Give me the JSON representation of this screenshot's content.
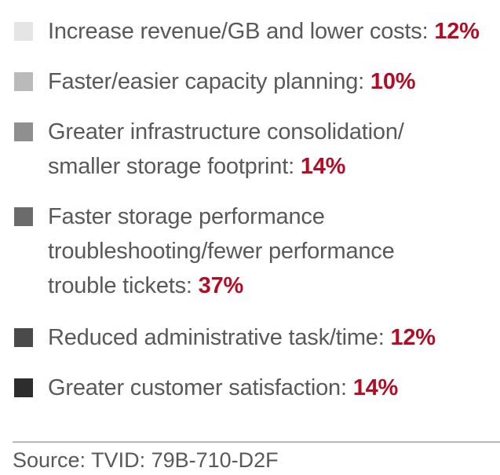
{
  "chart_data": {
    "type": "pie",
    "title": "",
    "legend_position": "left",
    "series": [
      {
        "name": "Increase revenue/GB and lower costs",
        "value": 12,
        "value_label": "12%",
        "color": "#e5e5e5"
      },
      {
        "name": "Faster/easier capacity planning",
        "value": 10,
        "value_label": "10%",
        "color": "#bababa"
      },
      {
        "name": "Greater infrastructure consolidation/ smaller storage footprint",
        "value": 14,
        "value_label": "14%",
        "color": "#8f8f8f"
      },
      {
        "name": "Faster storage performance troubleshooting/fewer performance trouble tickets",
        "value": 37,
        "value_label": "37%",
        "color": "#6b6b6b"
      },
      {
        "name": "Reduced administrative task/time",
        "value": 12,
        "value_label": "12%",
        "color": "#4a4a4a"
      },
      {
        "name": "Greater customer satisfaction",
        "value": 14,
        "value_label": "14%",
        "color": "#2d2d2d"
      }
    ]
  },
  "labels": [
    {
      "text": "Increase revenue/GB and lower costs:"
    },
    {
      "text": "Faster/easier capacity planning:"
    },
    {
      "text": "Greater infrastructure consolidation/ smaller storage footprint:"
    },
    {
      "text": "Faster storage performance troubleshooting/fewer performance trouble tickets:"
    },
    {
      "text": "Reduced administrative task/time:"
    },
    {
      "text": "Greater customer satisfaction:"
    }
  ],
  "source": "Source: TVID: 79B-710-D2F"
}
